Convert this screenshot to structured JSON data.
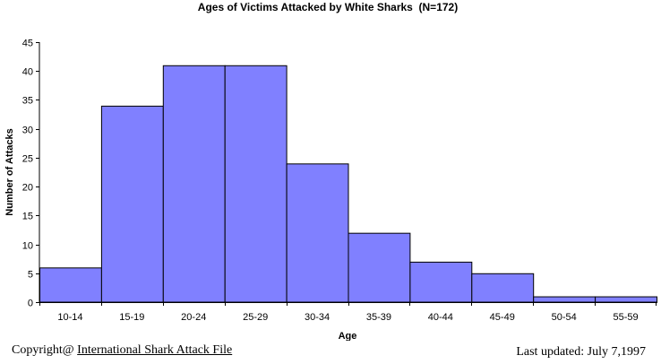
{
  "chart_data": {
    "type": "bar",
    "title": "Ages of Victims Attacked by White Sharks  (N=172)",
    "xlabel": "Age",
    "ylabel": "Number of Attacks",
    "categories": [
      "10-14",
      "15-19",
      "20-24",
      "25-29",
      "30-34",
      "35-39",
      "40-44",
      "45-49",
      "50-54",
      "55-59"
    ],
    "values": [
      6,
      34,
      41,
      41,
      24,
      12,
      7,
      5,
      1,
      1
    ],
    "ylim": [
      0,
      45
    ],
    "yticks": [
      0,
      5,
      10,
      15,
      20,
      25,
      30,
      35,
      40,
      45
    ],
    "bar_color": "#8080ff",
    "grid": false,
    "legend": "none"
  },
  "footer": {
    "copyright_prefix": "Copyright@ ",
    "copyright_link": "International Shark Attack File",
    "last_updated": "Last updated: July 7,1997"
  }
}
